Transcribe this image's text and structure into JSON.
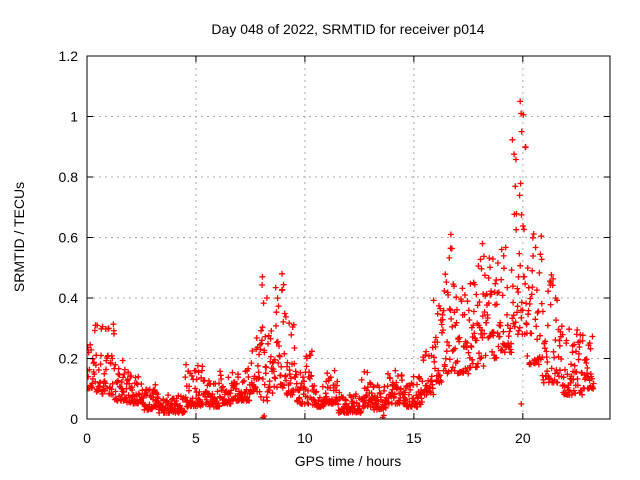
{
  "chart_data": {
    "type": "scatter",
    "title": "Day 048 of 2022, SRMTID for receiver p014",
    "xlabel": "GPS time / hours",
    "ylabel": "SRMTID / TECUs",
    "xlim": [
      0,
      24
    ],
    "ylim": [
      0,
      1.2
    ],
    "xticks": [
      0,
      5,
      10,
      15,
      20
    ],
    "xtick_labels": [
      "0",
      "5",
      "10",
      "15",
      "20"
    ],
    "yticks": [
      0,
      0.2,
      0.4,
      0.6,
      0.8,
      1.0,
      1.2
    ],
    "ytick_labels": [
      "0",
      "0.2",
      "0.4",
      "0.6",
      "0.8",
      "1",
      "1.2"
    ],
    "grid": true,
    "legend_position": "none",
    "marker": {
      "shape": "plus",
      "color": "#ff0000",
      "size": 7,
      "stroke_width": 1.3
    },
    "colors": {
      "axis": "#000000",
      "grid": "#a8a8a8",
      "background": "#ffffff"
    },
    "seed": 48,
    "series_name": "SRMTID for receiver p014, day 048 of 2022",
    "density_segments_comment": "Binned envelope of ~1400 one-minute samples: [x_start_h, x_end_h, y_min_TECU, y_max_TECU, shape_k (density skew toward y_min), n_points]",
    "segments": [
      [
        0.0,
        0.35,
        0.1,
        0.31,
        2.0,
        21
      ],
      [
        0.35,
        0.65,
        0.09,
        0.36,
        2.0,
        18
      ],
      [
        0.65,
        1.25,
        0.08,
        0.34,
        2.0,
        36
      ],
      [
        1.25,
        1.8,
        0.06,
        0.2,
        2.0,
        33
      ],
      [
        1.8,
        2.6,
        0.05,
        0.16,
        2.0,
        48
      ],
      [
        2.6,
        3.3,
        0.03,
        0.12,
        2.0,
        42
      ],
      [
        3.3,
        4.5,
        0.02,
        0.08,
        1.8,
        72
      ],
      [
        4.5,
        5.3,
        0.04,
        0.18,
        2.0,
        48
      ],
      [
        5.3,
        6.1,
        0.04,
        0.13,
        2.0,
        48
      ],
      [
        6.1,
        6.6,
        0.05,
        0.16,
        2.0,
        30
      ],
      [
        6.6,
        7.5,
        0.06,
        0.17,
        2.0,
        54
      ],
      [
        7.5,
        7.95,
        0.09,
        0.28,
        1.8,
        27
      ],
      [
        7.95,
        8.3,
        0.06,
        0.47,
        1.5,
        21
      ],
      [
        8.3,
        8.6,
        0.08,
        0.3,
        1.8,
        18
      ],
      [
        8.6,
        9.1,
        0.1,
        0.48,
        1.5,
        30
      ],
      [
        9.1,
        9.6,
        0.08,
        0.35,
        1.9,
        30
      ],
      [
        9.6,
        10.0,
        0.05,
        0.16,
        2.0,
        24
      ],
      [
        10.0,
        10.35,
        0.05,
        0.26,
        1.8,
        21
      ],
      [
        10.35,
        10.9,
        0.04,
        0.13,
        2.0,
        33
      ],
      [
        10.9,
        11.5,
        0.05,
        0.17,
        2.0,
        36
      ],
      [
        11.5,
        12.6,
        0.02,
        0.09,
        1.8,
        66
      ],
      [
        12.6,
        13.1,
        0.04,
        0.16,
        2.0,
        30
      ],
      [
        13.1,
        13.8,
        0.03,
        0.12,
        2.0,
        42
      ],
      [
        13.8,
        14.6,
        0.05,
        0.17,
        2.0,
        48
      ],
      [
        14.6,
        15.4,
        0.04,
        0.14,
        2.0,
        48
      ],
      [
        15.4,
        15.9,
        0.08,
        0.24,
        2.0,
        30
      ],
      [
        15.9,
        16.35,
        0.12,
        0.42,
        1.8,
        27
      ],
      [
        16.35,
        16.8,
        0.15,
        0.61,
        1.7,
        27
      ],
      [
        16.8,
        17.5,
        0.15,
        0.46,
        1.8,
        42
      ],
      [
        17.5,
        18.2,
        0.17,
        0.58,
        1.9,
        42
      ],
      [
        18.2,
        18.9,
        0.2,
        0.58,
        1.8,
        42
      ],
      [
        18.9,
        19.5,
        0.22,
        0.62,
        1.8,
        36
      ],
      [
        19.5,
        20.2,
        0.28,
        1.06,
        2.4,
        45
      ],
      [
        20.2,
        20.9,
        0.18,
        0.64,
        2.0,
        42
      ],
      [
        20.9,
        21.6,
        0.12,
        0.48,
        2.0,
        42
      ],
      [
        21.6,
        22.2,
        0.08,
        0.33,
        2.0,
        36
      ],
      [
        22.2,
        22.75,
        0.08,
        0.3,
        1.8,
        33
      ],
      [
        22.75,
        23.25,
        0.1,
        0.28,
        1.8,
        30
      ]
    ],
    "notable_points_comment": "Individually visible markers read off the plot",
    "notable_points": [
      [
        8.08,
        0.005
      ],
      [
        8.13,
        0.01
      ],
      [
        13.57,
        0.005
      ],
      [
        13.62,
        0.012
      ],
      [
        19.93,
        0.05
      ],
      [
        19.88,
        1.05
      ],
      [
        19.92,
        1.01
      ],
      [
        19.95,
        0.95
      ],
      [
        16.7,
        0.61
      ],
      [
        18.15,
        0.58
      ],
      [
        8.95,
        0.48
      ],
      [
        8.05,
        0.47
      ]
    ]
  }
}
